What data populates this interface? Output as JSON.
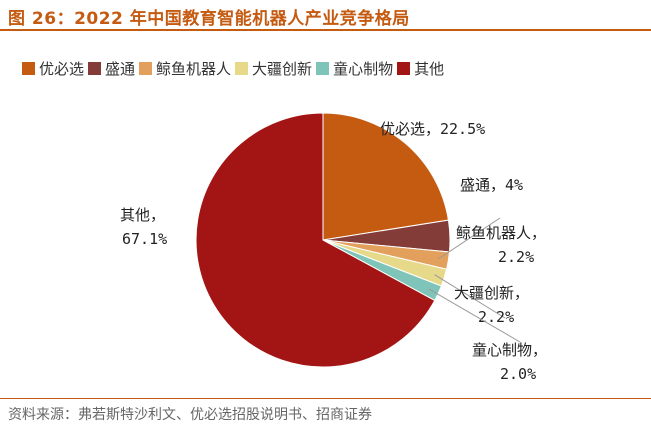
{
  "title": "图 26：2022 年中国教育智能机器人产业竞争格局",
  "source": "资料来源：弗若斯特沙利文、优必选招股说明书、招商证券",
  "chart_data": {
    "type": "pie",
    "slices": [
      {
        "name": "优必选",
        "value": 22.5,
        "label": "优必选，22.5%",
        "color": "#c55a11"
      },
      {
        "name": "盛通",
        "value": 4.0,
        "label": "盛通，4%",
        "color": "#843c39"
      },
      {
        "name": "鲸鱼机器人",
        "value": 2.2,
        "label": "鲸鱼机器人，2.2%",
        "color": "#e2a05c"
      },
      {
        "name": "大疆创新",
        "value": 2.2,
        "label": "大疆创新，2.2%",
        "color": "#e6d98a"
      },
      {
        "name": "童心制物",
        "value": 2.0,
        "label": "童心制物，2.0%",
        "color": "#7fc4b8"
      },
      {
        "name": "其他",
        "value": 67.1,
        "label": "其他，67.1%",
        "color": "#a31515"
      }
    ],
    "legend_position": "top"
  }
}
